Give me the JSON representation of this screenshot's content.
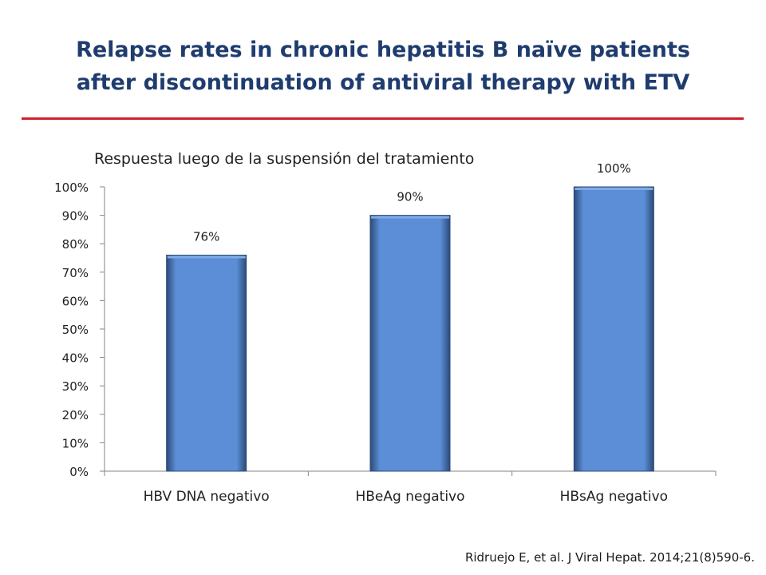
{
  "slide": {
    "title_line1": "Relapse rates in chronic hepatitis B naïve patients",
    "title_line2": "after discontinuation of antiviral therapy with ETV",
    "citation": "Ridruejo E, et al. J Viral Hepat. 2014;21(8)590-6."
  },
  "colors": {
    "title": "#1f3c6e",
    "rule": "#d0202a",
    "bar_fill": "#5b8ed6",
    "bar_edge": "#2c4a78"
  },
  "chart_data": {
    "type": "bar",
    "title": "Respuesta luego de la suspensión del tratamiento",
    "categories": [
      "HBV DNA negativo",
      "HBeAg negativo",
      "HBsAg negativo"
    ],
    "values": [
      76,
      90,
      100
    ],
    "data_labels": [
      "76%",
      "90%",
      "100%"
    ],
    "ylim": [
      0,
      100
    ],
    "yticks": [
      0,
      10,
      20,
      30,
      40,
      50,
      60,
      70,
      80,
      90,
      100
    ],
    "ytick_labels": [
      "0%",
      "10%",
      "20%",
      "30%",
      "40%",
      "50%",
      "60%",
      "70%",
      "80%",
      "90%",
      "100%"
    ],
    "xlabel": "",
    "ylabel": "",
    "grid": false,
    "legend": "none"
  }
}
